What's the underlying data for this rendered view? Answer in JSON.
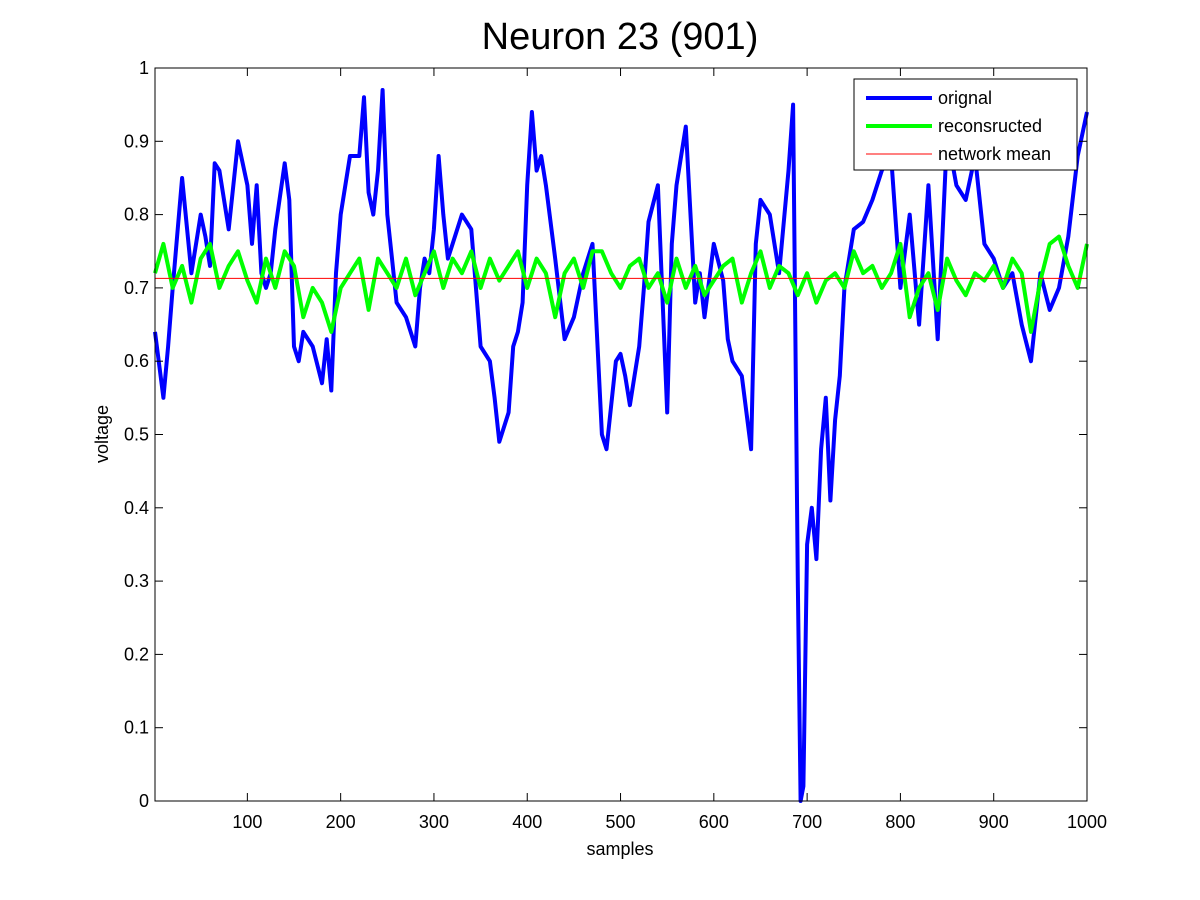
{
  "chart_data": {
    "type": "line",
    "title": "Neuron 23 (901)",
    "xlabel": "samples",
    "ylabel": "voltage",
    "xlim": [
      1,
      1000
    ],
    "ylim": [
      0,
      1
    ],
    "xticks": [
      100,
      200,
      300,
      400,
      500,
      600,
      700,
      800,
      900,
      1000
    ],
    "yticks": [
      0,
      0.1,
      0.2,
      0.3,
      0.4,
      0.5,
      0.6,
      0.7,
      0.8,
      0.9,
      1
    ],
    "grid": false,
    "legend_position": "top-right",
    "series": [
      {
        "name": "orignal",
        "color": "#0000ff",
        "line_width": "thick",
        "x": [
          1,
          10,
          15,
          20,
          30,
          40,
          50,
          55,
          60,
          65,
          70,
          80,
          90,
          100,
          105,
          110,
          115,
          120,
          125,
          130,
          140,
          145,
          150,
          155,
          160,
          170,
          180,
          185,
          190,
          195,
          200,
          210,
          220,
          225,
          230,
          235,
          240,
          245,
          250,
          255,
          260,
          270,
          280,
          285,
          290,
          295,
          300,
          305,
          310,
          315,
          320,
          330,
          340,
          350,
          360,
          365,
          370,
          380,
          385,
          390,
          395,
          400,
          405,
          410,
          415,
          420,
          430,
          440,
          450,
          460,
          470,
          480,
          485,
          490,
          495,
          500,
          505,
          510,
          515,
          520,
          525,
          530,
          540,
          550,
          555,
          560,
          570,
          580,
          585,
          590,
          600,
          610,
          615,
          620,
          630,
          640,
          645,
          650,
          660,
          670,
          680,
          685,
          690,
          693,
          696,
          700,
          705,
          710,
          715,
          720,
          725,
          730,
          735,
          740,
          750,
          760,
          770,
          780,
          790,
          800,
          810,
          820,
          830,
          840,
          850,
          860,
          870,
          880,
          890,
          900,
          910,
          920,
          930,
          940,
          950,
          960,
          970,
          980,
          990,
          1000
        ],
        "y": [
          0.64,
          0.55,
          0.62,
          0.7,
          0.85,
          0.72,
          0.8,
          0.77,
          0.73,
          0.87,
          0.86,
          0.78,
          0.9,
          0.84,
          0.76,
          0.84,
          0.72,
          0.7,
          0.72,
          0.78,
          0.87,
          0.82,
          0.62,
          0.6,
          0.64,
          0.62,
          0.57,
          0.63,
          0.56,
          0.72,
          0.8,
          0.88,
          0.88,
          0.96,
          0.83,
          0.8,
          0.86,
          0.97,
          0.8,
          0.74,
          0.68,
          0.66,
          0.62,
          0.7,
          0.74,
          0.72,
          0.78,
          0.88,
          0.8,
          0.74,
          0.76,
          0.8,
          0.78,
          0.62,
          0.6,
          0.55,
          0.49,
          0.53,
          0.62,
          0.64,
          0.68,
          0.84,
          0.94,
          0.86,
          0.88,
          0.84,
          0.74,
          0.63,
          0.66,
          0.72,
          0.76,
          0.5,
          0.48,
          0.54,
          0.6,
          0.61,
          0.58,
          0.54,
          0.58,
          0.62,
          0.7,
          0.79,
          0.84,
          0.53,
          0.76,
          0.84,
          0.92,
          0.68,
          0.72,
          0.66,
          0.76,
          0.71,
          0.63,
          0.6,
          0.58,
          0.48,
          0.76,
          0.82,
          0.8,
          0.72,
          0.86,
          0.95,
          0.3,
          0.0,
          0.02,
          0.35,
          0.4,
          0.33,
          0.48,
          0.55,
          0.41,
          0.52,
          0.58,
          0.7,
          0.78,
          0.79,
          0.82,
          0.86,
          0.88,
          0.7,
          0.8,
          0.65,
          0.84,
          0.63,
          0.91,
          0.84,
          0.82,
          0.88,
          0.76,
          0.74,
          0.7,
          0.72,
          0.65,
          0.6,
          0.72,
          0.67,
          0.7,
          0.77,
          0.88,
          0.94
        ]
      },
      {
        "name": "reconsructed",
        "color": "#00ff00",
        "line_width": "thick",
        "x": [
          1,
          10,
          20,
          30,
          40,
          50,
          60,
          70,
          80,
          90,
          100,
          110,
          120,
          130,
          140,
          150,
          160,
          170,
          180,
          190,
          200,
          210,
          220,
          230,
          240,
          250,
          260,
          270,
          280,
          290,
          300,
          310,
          320,
          330,
          340,
          350,
          360,
          370,
          380,
          390,
          400,
          410,
          420,
          430,
          440,
          450,
          460,
          470,
          480,
          490,
          500,
          510,
          520,
          530,
          540,
          550,
          560,
          570,
          580,
          590,
          600,
          610,
          620,
          630,
          640,
          650,
          660,
          670,
          680,
          690,
          700,
          710,
          720,
          730,
          740,
          750,
          760,
          770,
          780,
          790,
          800,
          810,
          820,
          830,
          840,
          850,
          860,
          870,
          880,
          890,
          900,
          910,
          920,
          930,
          940,
          950,
          960,
          970,
          980,
          990,
          1000
        ],
        "y": [
          0.72,
          0.76,
          0.7,
          0.73,
          0.68,
          0.74,
          0.76,
          0.7,
          0.73,
          0.75,
          0.71,
          0.68,
          0.74,
          0.7,
          0.75,
          0.73,
          0.66,
          0.7,
          0.68,
          0.64,
          0.7,
          0.72,
          0.74,
          0.67,
          0.74,
          0.72,
          0.7,
          0.74,
          0.69,
          0.72,
          0.75,
          0.7,
          0.74,
          0.72,
          0.75,
          0.7,
          0.74,
          0.71,
          0.73,
          0.75,
          0.7,
          0.74,
          0.72,
          0.66,
          0.72,
          0.74,
          0.7,
          0.75,
          0.75,
          0.72,
          0.7,
          0.73,
          0.74,
          0.7,
          0.72,
          0.68,
          0.74,
          0.7,
          0.73,
          0.69,
          0.71,
          0.73,
          0.74,
          0.68,
          0.72,
          0.75,
          0.7,
          0.73,
          0.72,
          0.69,
          0.72,
          0.68,
          0.71,
          0.72,
          0.7,
          0.75,
          0.72,
          0.73,
          0.7,
          0.72,
          0.76,
          0.66,
          0.7,
          0.72,
          0.67,
          0.74,
          0.71,
          0.69,
          0.72,
          0.71,
          0.73,
          0.7,
          0.74,
          0.72,
          0.64,
          0.71,
          0.76,
          0.77,
          0.73,
          0.7,
          0.76
        ]
      },
      {
        "name": "network mean",
        "color": "#ff0000",
        "line_width": "thin",
        "x": [
          1,
          1000
        ],
        "y": [
          0.713,
          0.713
        ]
      }
    ]
  }
}
